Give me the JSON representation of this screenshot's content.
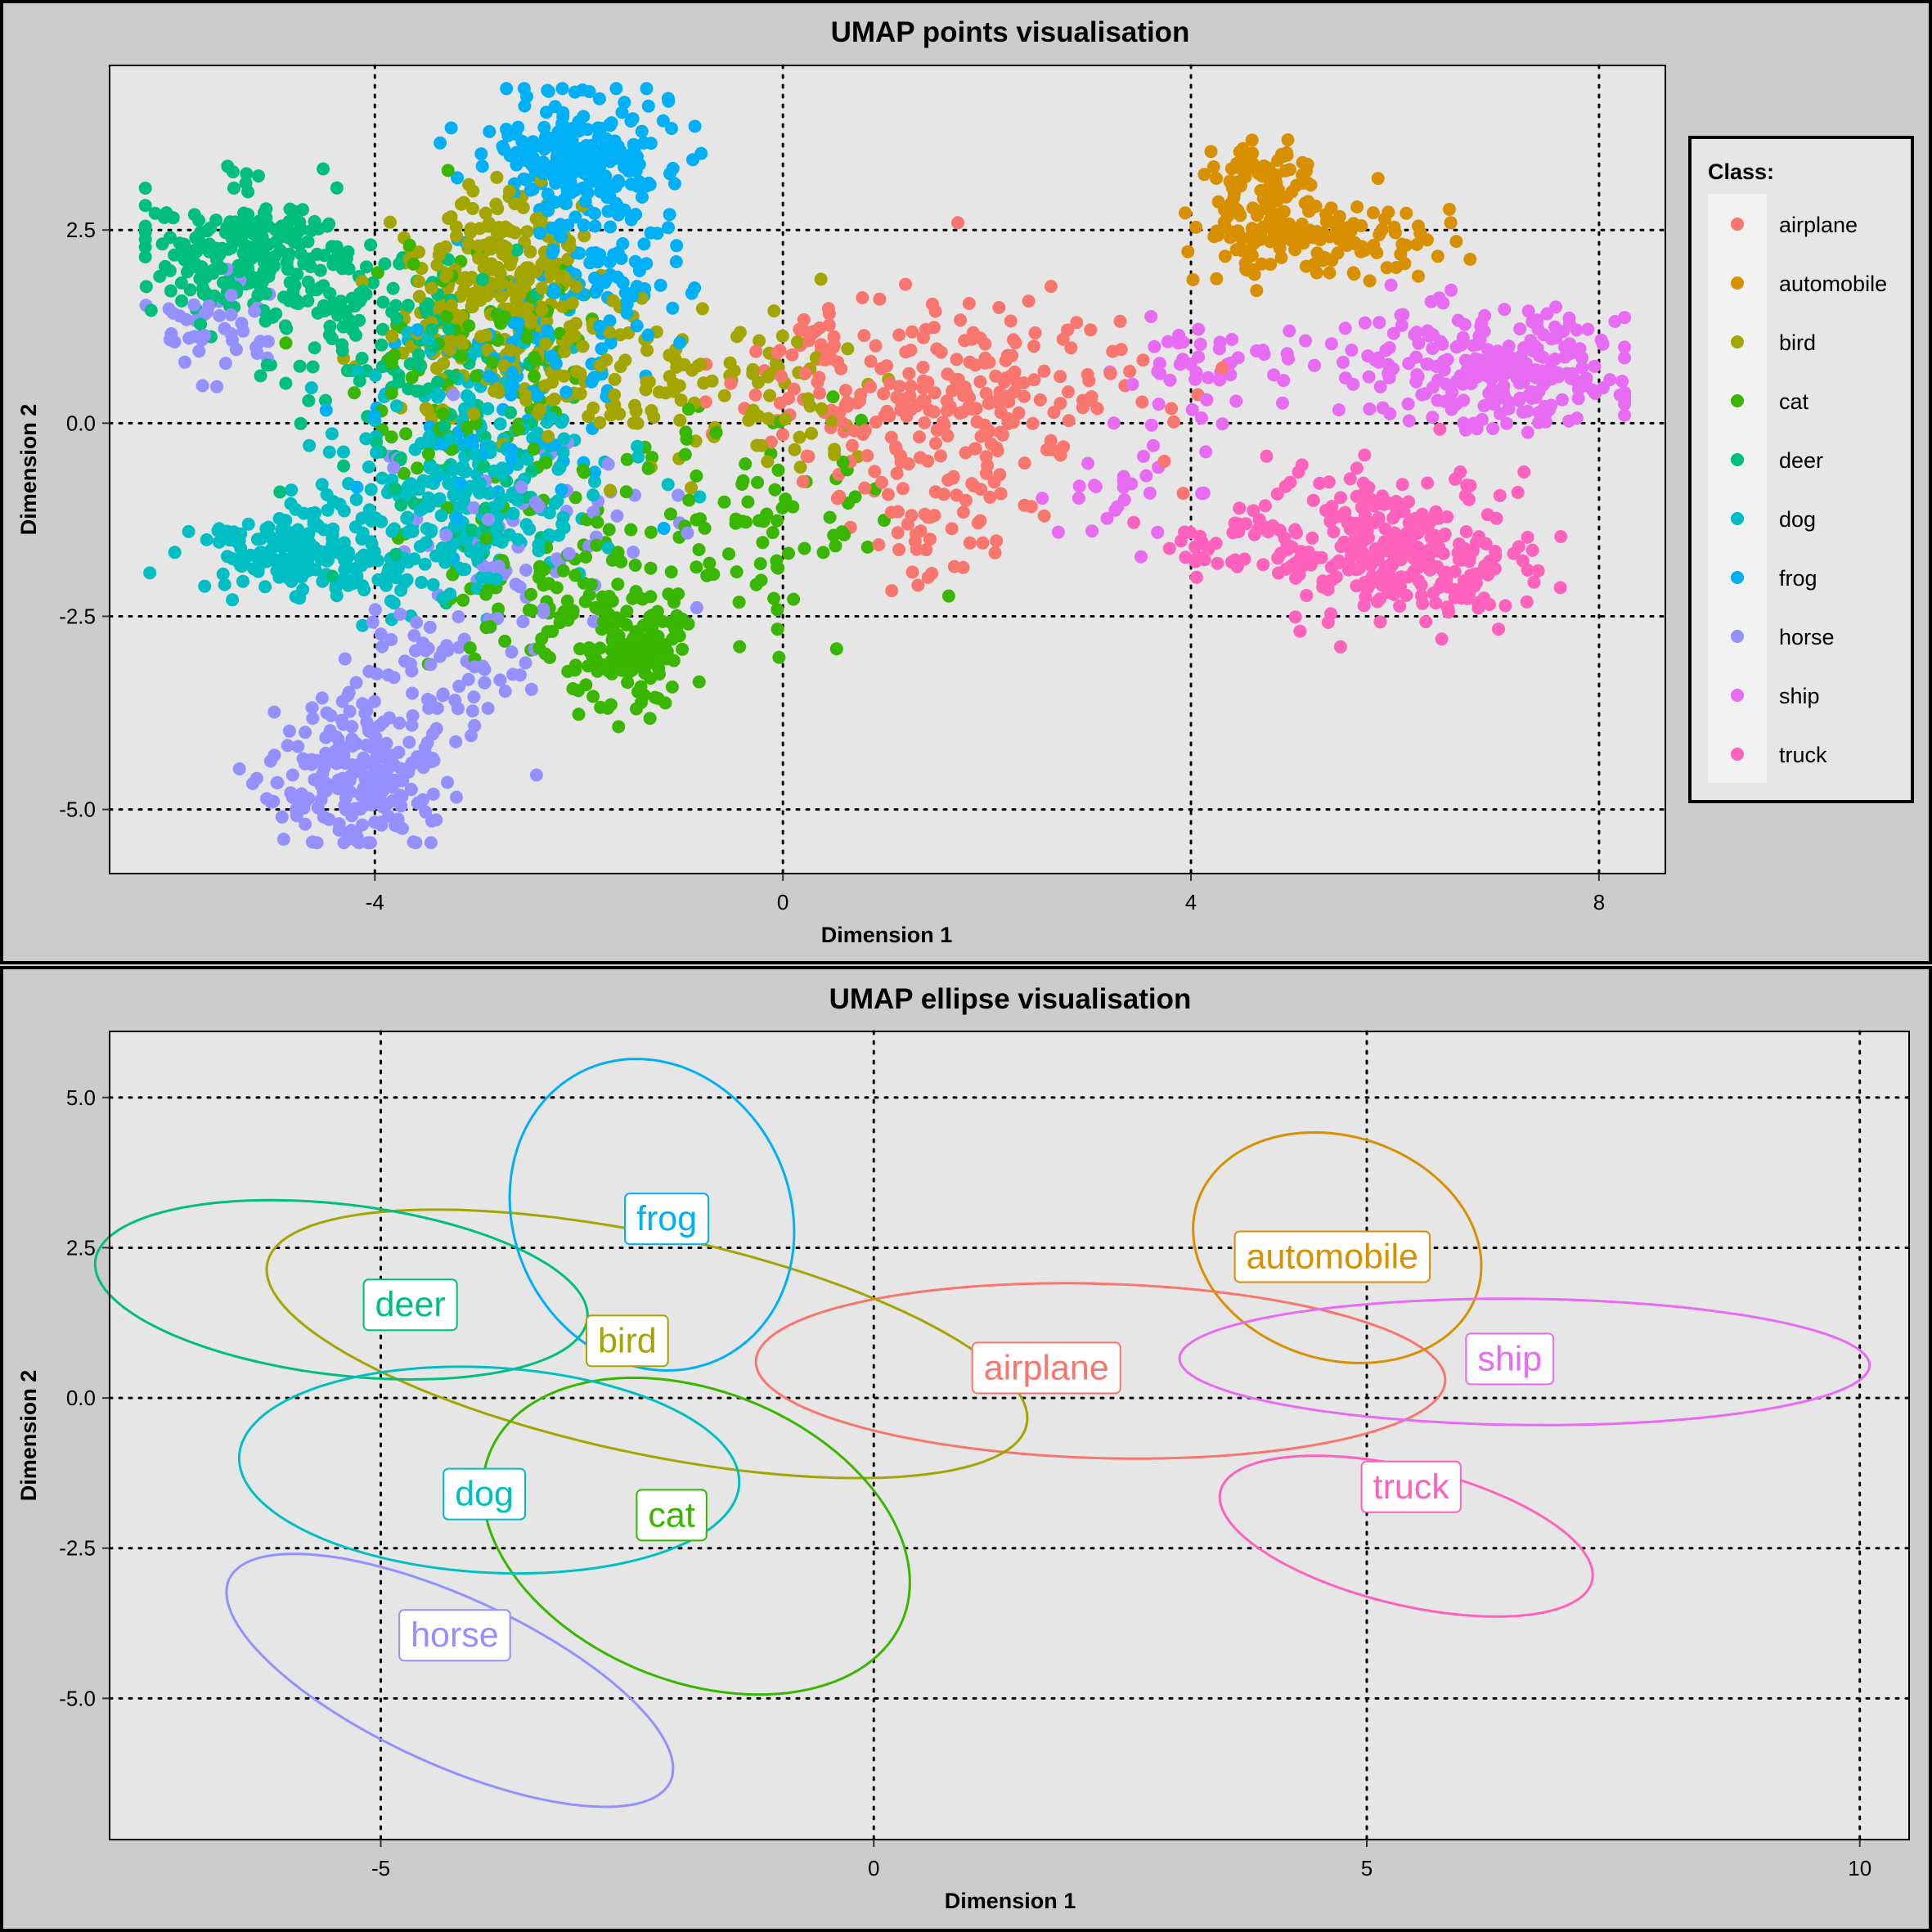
{
  "colors": {
    "airplane": "#F8766D",
    "automobile": "#D89000",
    "bird": "#A3A500",
    "cat": "#39B600",
    "deer": "#00BF7D",
    "dog": "#00BFC4",
    "frog": "#00B0F6",
    "horse": "#9590FF",
    "ship": "#E76BF3",
    "truck": "#FF62BC"
  },
  "chart_data": [
    {
      "type": "scatter",
      "title": "UMAP points visualisation",
      "xlabel": "Dimension 1",
      "ylabel": "Dimension 2",
      "xlim": [
        -6.6,
        8.65
      ],
      "ylim": [
        -5.83,
        4.63
      ],
      "xticks": [
        -4,
        0,
        4,
        8
      ],
      "xtick_labels": [
        "-4",
        "0",
        "4",
        "8"
      ],
      "yticks": [
        2.5,
        0,
        -2.5,
        -5
      ],
      "ytick_labels": [
        "2.5",
        "0.0",
        "-2.5",
        "-5.0"
      ],
      "grid": true,
      "legend": {
        "title": "Class:",
        "position": "right",
        "items": [
          "airplane",
          "automobile",
          "bird",
          "cat",
          "deer",
          "dog",
          "frog",
          "horse",
          "ship",
          "truck"
        ]
      },
      "clusters": [
        {
          "class": "airplane",
          "n": 320,
          "blobs": [
            [
              1.9,
              0.5,
              0.9,
              0.55,
              0.6
            ],
            [
              1.5,
              -0.9,
              0.45,
              0.6,
              0.25
            ],
            [
              0.5,
              0.6,
              0.6,
              0.4,
              0.15
            ]
          ]
        },
        {
          "class": "automobile",
          "n": 230,
          "blobs": [
            [
              4.7,
              3.0,
              0.3,
              0.45,
              0.5
            ],
            [
              5.2,
              2.4,
              0.55,
              0.25,
              0.5
            ]
          ]
        },
        {
          "class": "bird",
          "n": 420,
          "blobs": [
            [
              -2.7,
              2.0,
              0.4,
              0.5,
              0.35
            ],
            [
              -2.3,
              0.8,
              0.6,
              0.5,
              0.25
            ],
            [
              -0.6,
              0.4,
              0.8,
              0.45,
              0.25
            ],
            [
              -3.3,
              1.5,
              0.4,
              0.6,
              0.15
            ]
          ]
        },
        {
          "class": "cat",
          "n": 420,
          "blobs": [
            [
              -1.5,
              -3.0,
              0.25,
              0.35,
              0.3
            ],
            [
              -2.2,
              -2.2,
              0.5,
              0.6,
              0.2
            ],
            [
              -0.3,
              -1.3,
              0.7,
              0.7,
              0.25
            ],
            [
              -3.0,
              0.6,
              0.7,
              0.9,
              0.25
            ]
          ]
        },
        {
          "class": "deer",
          "n": 380,
          "blobs": [
            [
              -5.3,
              2.2,
              0.5,
              0.4,
              0.5
            ],
            [
              -4.2,
              1.5,
              0.5,
              0.5,
              0.25
            ],
            [
              -3.4,
              0.2,
              0.6,
              1.0,
              0.25
            ]
          ]
        },
        {
          "class": "dog",
          "n": 450,
          "blobs": [
            [
              -4.8,
              -1.7,
              0.45,
              0.25,
              0.35
            ],
            [
              -3.5,
              -1.2,
              0.55,
              0.6,
              0.35
            ],
            [
              -2.8,
              -0.5,
              0.6,
              0.8,
              0.3
            ]
          ]
        },
        {
          "class": "frog",
          "n": 400,
          "blobs": [
            [
              -2.0,
              3.5,
              0.45,
              0.35,
              0.5
            ],
            [
              -1.8,
              2.0,
              0.4,
              0.7,
              0.3
            ],
            [
              -2.8,
              0.3,
              0.6,
              0.8,
              0.2
            ]
          ]
        },
        {
          "class": "horse",
          "n": 400,
          "blobs": [
            [
              -4.2,
              -4.6,
              0.45,
              0.45,
              0.55
            ],
            [
              -3.2,
              -3.2,
              0.5,
              0.6,
              0.2
            ],
            [
              -2.5,
              -1.3,
              0.6,
              0.6,
              0.15
            ],
            [
              -5.5,
              1.3,
              0.3,
              0.3,
              0.1
            ]
          ]
        },
        {
          "class": "ship",
          "n": 330,
          "blobs": [
            [
              7.0,
              0.7,
              0.7,
              0.38,
              0.75
            ],
            [
              4.2,
              0.8,
              0.4,
              0.3,
              0.12
            ],
            [
              3.3,
              -0.8,
              0.4,
              0.4,
              0.13
            ]
          ]
        },
        {
          "class": "truck",
          "n": 340,
          "blobs": [
            [
              5.9,
              -1.5,
              0.55,
              0.5,
              0.6
            ],
            [
              6.5,
              -2.0,
              0.5,
              0.3,
              0.25
            ],
            [
              4.5,
              -1.6,
              0.4,
              0.3,
              0.15
            ]
          ]
        }
      ]
    },
    {
      "type": "ellipse",
      "title": "UMAP ellipse visualisation",
      "xlabel": "Dimension 1",
      "ylabel": "Dimension 2",
      "xlim": [
        -7.75,
        10.5
      ],
      "ylim": [
        -7.35,
        6.1
      ],
      "xticks": [
        -5,
        0,
        5,
        10
      ],
      "xtick_labels": [
        "-5",
        "0",
        "5",
        "10"
      ],
      "yticks": [
        5,
        2.5,
        0,
        -2.5,
        -5
      ],
      "ytick_labels": [
        "5.0",
        "2.5",
        "0.0",
        "-2.5",
        "-5.0"
      ],
      "grid": true,
      "ellipses": [
        {
          "class": "airplane",
          "cx": 2.3,
          "cy": 0.45,
          "rx": 3.5,
          "ry": 1.45,
          "angle_deg": -3,
          "label_x": 1.75,
          "label_y": 0.5
        },
        {
          "class": "automobile",
          "cx": 4.7,
          "cy": 2.5,
          "rx": 1.42,
          "ry": 1.95,
          "angle_deg": 15,
          "label_x": 4.65,
          "label_y": 2.35
        },
        {
          "class": "bird",
          "cx": -2.3,
          "cy": 0.9,
          "rx": 4.1,
          "ry": 1.75,
          "angle_deg": -22,
          "label_x": -2.5,
          "label_y": 0.95
        },
        {
          "class": "cat",
          "cx": -1.8,
          "cy": -2.3,
          "rx": 2.8,
          "ry": 1.95,
          "angle_deg": -62,
          "label_x": -2.05,
          "label_y": -1.95
        },
        {
          "class": "deer",
          "cx": -5.4,
          "cy": 1.8,
          "rx": 2.55,
          "ry": 1.4,
          "angle_deg": -14,
          "label_x": -4.7,
          "label_y": 1.55
        },
        {
          "class": "dog",
          "cx": -3.9,
          "cy": -1.2,
          "rx": 2.55,
          "ry": 1.7,
          "angle_deg": -8,
          "label_x": -3.95,
          "label_y": -1.6
        },
        {
          "class": "frog",
          "cx": -2.25,
          "cy": 3.05,
          "rx": 1.43,
          "ry": 2.6,
          "angle_deg": 5,
          "label_x": -2.1,
          "label_y": 2.98
        },
        {
          "class": "horse",
          "cx": -4.3,
          "cy": -4.7,
          "rx": 2.85,
          "ry": 1.2,
          "angle_deg": -42,
          "label_x": -4.25,
          "label_y": -3.95
        },
        {
          "class": "ship",
          "cx": 6.6,
          "cy": 0.6,
          "rx": 3.5,
          "ry": 1.05,
          "angle_deg": -1,
          "label_x": 6.45,
          "label_y": 0.65
        },
        {
          "class": "truck",
          "cx": 5.4,
          "cy": -2.3,
          "rx": 2.05,
          "ry": 1.08,
          "angle_deg": -27,
          "label_x": 5.45,
          "label_y": -1.48
        }
      ]
    }
  ]
}
